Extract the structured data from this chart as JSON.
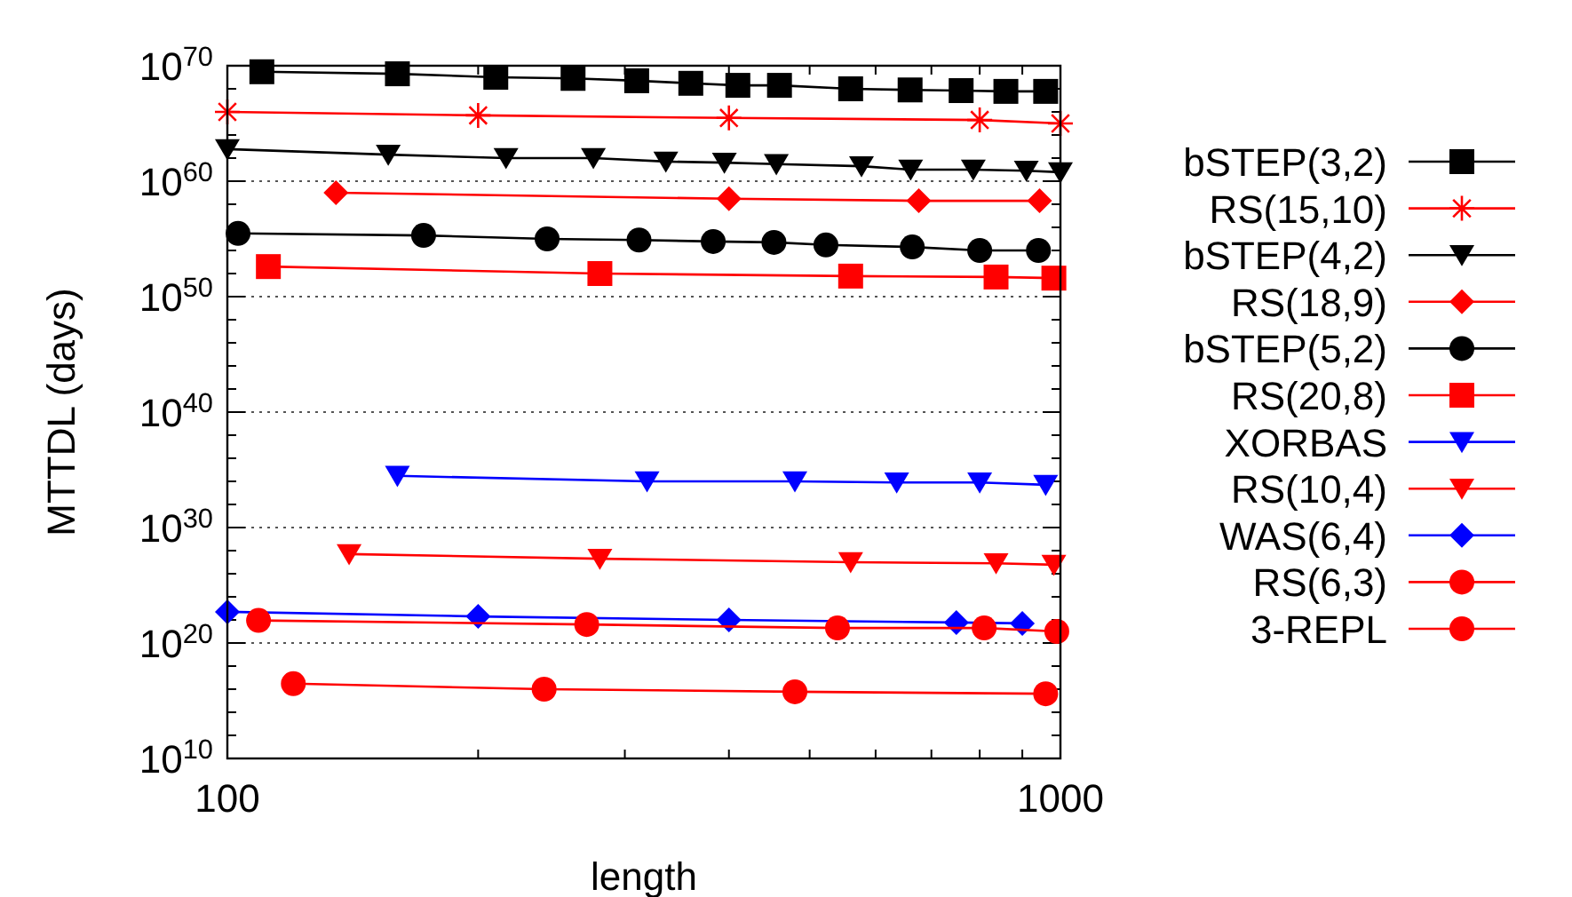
{
  "chart_data": {
    "type": "line",
    "xlabel": "length",
    "ylabel": "MTTDL (days)",
    "log": "xy",
    "grid": "y",
    "legend": "right",
    "xlim": [
      100,
      1000
    ],
    "xticks": [
      100,
      1000
    ],
    "ylim": [
      10000000000.0,
      1e+70
    ],
    "yticks": [
      {
        "value": 10000000000.0,
        "label": "10$^{10}$"
      },
      {
        "value": 1e+20,
        "label": "10$^{20}$"
      },
      {
        "value": 1e+30,
        "label": "10$^{30}$"
      },
      {
        "value": 1e+40,
        "label": "10$^{40}$"
      },
      {
        "value": 1e+50,
        "label": "10$^{50}$"
      },
      {
        "value": 1e+60,
        "label": "10$^{60}$"
      },
      {
        "value": 1e+70,
        "label": "10$^{70}$"
      }
    ],
    "series": [
      {
        "name": "bSTEP(3,2)",
        "color": "#000000",
        "marker": "square",
        "x": [
          110,
          160,
          210,
          260,
          310,
          360,
          410,
          460,
          560,
          660,
          760,
          860,
          960
        ],
        "values": [
          3e+69,
          2e+69,
          1e+69,
          8e+68,
          5e+68,
          3e+68,
          2e+68,
          2e+68,
          1e+68,
          8e+67,
          7e+67,
          6e+67,
          6e+67
        ]
      },
      {
        "name": "RS(15,10)",
        "color": "#ff0000",
        "marker": "cross",
        "x": [
          100,
          200,
          400,
          800,
          1000
        ],
        "values": [
          1e+66,
          5e+65,
          3e+65,
          2e+65,
          1e+65
        ]
      },
      {
        "name": "bSTEP(4,2)",
        "color": "#000000",
        "marker": "triangle",
        "x": [
          100,
          156,
          216,
          275,
          336,
          395,
          456,
          577,
          661,
          786,
          910,
          1000
        ],
        "values": [
          6e+62,
          2e+62,
          1e+62,
          1e+62,
          5e+61,
          4e+61,
          3e+61,
          2e+61,
          1e+61,
          1e+61,
          8e+60,
          6e+60
        ]
      },
      {
        "name": "RS(18,9)",
        "color": "#ff0000",
        "marker": "diamond",
        "x": [
          135,
          400,
          676,
          944
        ],
        "values": [
          1e+59,
          3e+58,
          2e+58,
          2e+58
        ]
      },
      {
        "name": "bSTEP(5,2)",
        "color": "#000000",
        "marker": "circle",
        "x": [
          103,
          172,
          242,
          312,
          383,
          453,
          523,
          664,
          800,
          941
        ],
        "values": [
          3e+55,
          2e+55,
          1e+55,
          8e+54,
          6e+54,
          5e+54,
          3e+54,
          2e+54,
          1e+54,
          1e+54
        ]
      },
      {
        "name": "RS(20,8)",
        "color": "#ff0000",
        "marker": "square",
        "x": [
          112,
          280,
          560,
          837,
          982
        ],
        "values": [
          4e+52,
          1e+52,
          6e+51,
          5e+51,
          4e+51
        ]
      },
      {
        "name": "XORBAS",
        "color": "#0000ff",
        "marker": "triangle",
        "x": [
          160,
          319,
          480,
          636,
          800,
          960
        ],
        "values": [
          3e+34,
          1e+34,
          1e+34,
          8e+33,
          8e+33,
          5e+33
        ]
      },
      {
        "name": "RS(10,4)",
        "color": "#ff0000",
        "marker": "triangle",
        "x": [
          140,
          280,
          560,
          837,
          982
        ],
        "values": [
          5e+27,
          2e+27,
          1e+27,
          8e+26,
          6e+26
        ]
      },
      {
        "name": "WAS(6,4)",
        "color": "#0000ff",
        "marker": "diamond",
        "x": [
          100,
          200,
          400,
          750,
          900
        ],
        "values": [
          5e+22,
          2e+22,
          1e+22,
          6e+21,
          5e+21
        ]
      },
      {
        "name": "RS(6,3)",
        "color": "#ff0000",
        "marker": "circle",
        "x": [
          109,
          270,
          540,
          810,
          990
        ],
        "values": [
          9e+21,
          4e+21,
          2e+21,
          2e+21,
          1e+21
        ]
      },
      {
        "name": "3-REPL",
        "color": "#ff0000",
        "marker": "circle",
        "x": [
          120,
          240,
          480,
          960
        ],
        "values": [
          3e+16,
          1e+16,
          6000000000000000.0,
          4000000000000000.0
        ]
      }
    ]
  }
}
